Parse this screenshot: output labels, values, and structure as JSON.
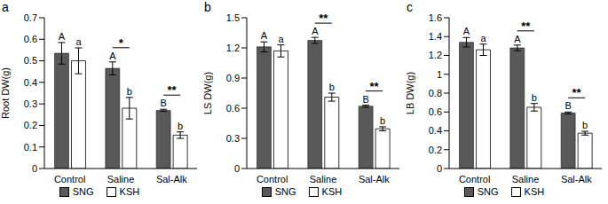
{
  "chart_data": [
    {
      "type": "bar",
      "title": "a",
      "y_label": "Root DW(g)",
      "categories": [
        "Control",
        "Saline",
        "Sal-Alk"
      ],
      "series": [
        {
          "name": "SNG",
          "color": "#595959",
          "values": [
            0.535,
            0.465,
            0.27
          ],
          "errors": [
            0.05,
            0.03,
            0.005
          ],
          "letters": [
            "A",
            "A",
            "B"
          ]
        },
        {
          "name": "KSH",
          "color": "#ffffff",
          "values": [
            0.5,
            0.28,
            0.155
          ],
          "errors": [
            0.06,
            0.05,
            0.015
          ],
          "letters": [
            "a",
            "b",
            "b"
          ]
        }
      ],
      "significance": [
        null,
        "*",
        "**"
      ],
      "ylim": [
        0,
        0.7
      ],
      "yticks": [
        0,
        0.1,
        0.2,
        0.3,
        0.4,
        0.5,
        0.6,
        0.7
      ],
      "legend": "bottom"
    },
    {
      "type": "bar",
      "title": "b",
      "y_label": "LS DW(g)",
      "categories": [
        "Control",
        "Saline",
        "Sal-Alk"
      ],
      "series": [
        {
          "name": "SNG",
          "color": "#595959",
          "values": [
            1.21,
            1.275,
            0.62
          ],
          "errors": [
            0.05,
            0.03,
            0.01
          ],
          "letters": [
            "A",
            "A",
            "B"
          ]
        },
        {
          "name": "KSH",
          "color": "#ffffff",
          "values": [
            1.17,
            0.71,
            0.395
          ],
          "errors": [
            0.06,
            0.04,
            0.02
          ],
          "letters": [
            "a",
            "b",
            "b"
          ]
        }
      ],
      "significance": [
        null,
        "**",
        "**"
      ],
      "ylim": [
        0,
        1.5
      ],
      "yticks": [
        0,
        0.3,
        0.6,
        0.9,
        1.2,
        1.5
      ],
      "legend": "bottom"
    },
    {
      "type": "bar",
      "title": "c",
      "y_label": "LB DW(g)",
      "categories": [
        "Control",
        "Saline",
        "Sal-Alk"
      ],
      "series": [
        {
          "name": "SNG",
          "color": "#595959",
          "values": [
            1.34,
            1.28,
            0.59
          ],
          "errors": [
            0.05,
            0.03,
            0.01
          ],
          "letters": [
            "A",
            "A",
            "B"
          ]
        },
        {
          "name": "KSH",
          "color": "#ffffff",
          "values": [
            1.26,
            0.65,
            0.375
          ],
          "errors": [
            0.06,
            0.04,
            0.02
          ],
          "letters": [
            "a",
            "b",
            "b"
          ]
        }
      ],
      "significance": [
        null,
        "**",
        "**"
      ],
      "ylim": [
        0,
        1.6
      ],
      "yticks": [
        0,
        0.2,
        0.4,
        0.6,
        0.8,
        1.0,
        1.2,
        1.4,
        1.6
      ],
      "legend": "bottom"
    }
  ]
}
